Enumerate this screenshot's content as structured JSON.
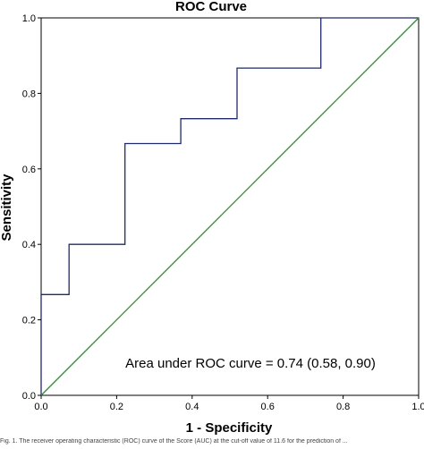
{
  "chart_data": {
    "type": "line",
    "title": "ROC Curve",
    "xlabel": "1 - Specificity",
    "ylabel": "Sensitivity",
    "xlim": [
      0,
      1
    ],
    "ylim": [
      0,
      1
    ],
    "xticks": [
      "0.0",
      "0.2",
      "0.4",
      "0.6",
      "0.8",
      "1.0"
    ],
    "yticks": [
      "0.0",
      "0.2",
      "0.4",
      "0.6",
      "0.8",
      "1.0"
    ],
    "grid": false,
    "annotation": "Area under ROC curve = 0.74 (0.58, 0.90)",
    "series": [
      {
        "color": "#1f2a6b",
        "step": true,
        "x": [
          0.0,
          0.0,
          0.074,
          0.074,
          0.222,
          0.222,
          0.37,
          0.37,
          0.519,
          0.519,
          0.741,
          0.741,
          1.0
        ],
        "y": [
          0.0,
          0.267,
          0.267,
          0.4,
          0.4,
          0.667,
          0.667,
          0.733,
          0.733,
          0.867,
          0.867,
          1.0,
          1.0
        ]
      },
      {
        "color": "#2e8b2e",
        "x": [
          0,
          1
        ],
        "y": [
          0,
          1
        ]
      }
    ]
  },
  "caption": "Fig. 1. The receiver operating characteristic (ROC) curve of the Score (AUC) at the cut-off value of 11.6 for the prediction of ..."
}
